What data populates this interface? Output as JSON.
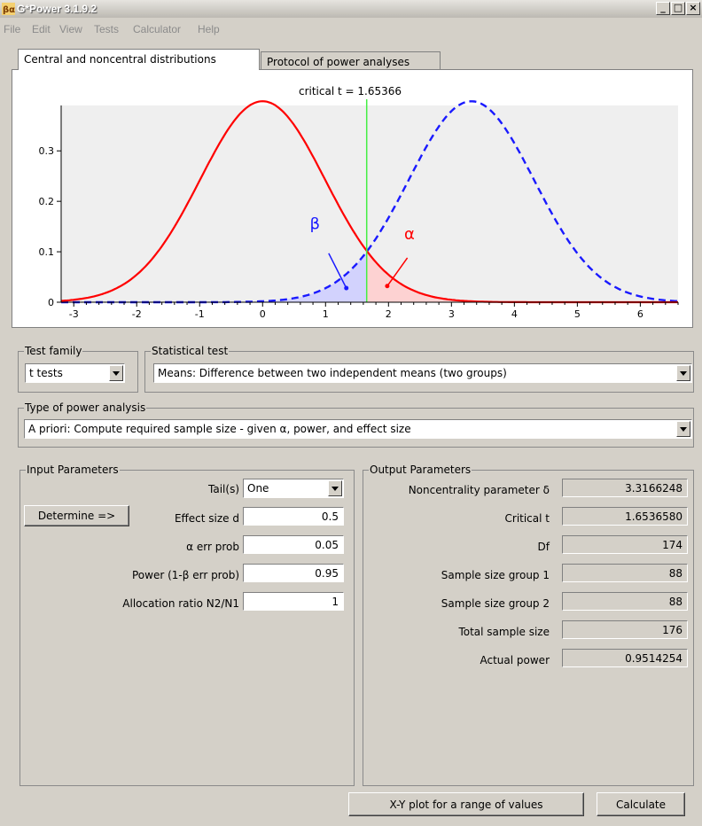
{
  "window": {
    "title": "G*Power 3.1.9.2"
  },
  "menu": [
    "File",
    "Edit",
    "View",
    "Tests",
    "Calculator",
    "Help"
  ],
  "tabs": [
    {
      "label": "Central and noncentral distributions",
      "active": true
    },
    {
      "label": "Protocol of power analyses",
      "active": false
    }
  ],
  "chart_data": {
    "type": "line",
    "title": "critical t = 1.65366",
    "xlim": [
      -3.2,
      6.6
    ],
    "ylim": [
      0,
      0.39
    ],
    "x_ticks": [
      -3,
      -2,
      -1,
      0,
      1,
      2,
      3,
      4,
      5,
      6
    ],
    "y_ticks": [
      0,
      0.1,
      0.2,
      0.3
    ],
    "y_tick_labels": [
      "0",
      "0.1",
      "0.2",
      "0.3"
    ],
    "critical_t": 1.65366,
    "noncentrality": 3.3166248,
    "df": 174,
    "series": [
      {
        "dist": "central t",
        "color": "#ff0000",
        "style": "solid"
      },
      {
        "dist": "noncentral t",
        "color": "#1a1aff",
        "style": "dashed"
      }
    ],
    "critical_line_color": "#44ee44",
    "annotations": [
      {
        "text": "β",
        "color": "#1a1aff"
      },
      {
        "text": "α",
        "color": "#ff0000"
      }
    ],
    "grid": false
  },
  "test_family": {
    "label": "Test family",
    "value": "t tests"
  },
  "statistical_test": {
    "label": "Statistical test",
    "value": "Means: Difference between two independent means (two groups)"
  },
  "power_analysis": {
    "label": "Type of power analysis",
    "value": "A priori: Compute required sample size - given α, power, and effect size"
  },
  "input": {
    "label": "Input Parameters",
    "determine_button": "Determine =>",
    "tails": {
      "label": "Tail(s)",
      "value": "One"
    },
    "params": [
      {
        "label": "Effect size d",
        "value": "0.5"
      },
      {
        "label": "α err prob",
        "value": "0.05"
      },
      {
        "label": "Power (1-β err prob)",
        "value": "0.95"
      },
      {
        "label": "Allocation ratio N2/N1",
        "value": "1"
      }
    ]
  },
  "output": {
    "label": "Output Parameters",
    "params": [
      {
        "label": "Noncentrality parameter δ",
        "value": "3.3166248"
      },
      {
        "label": "Critical t",
        "value": "1.6536580"
      },
      {
        "label": "Df",
        "value": "174"
      },
      {
        "label": "Sample size group 1",
        "value": "88"
      },
      {
        "label": "Sample size group 2",
        "value": "88"
      },
      {
        "label": "Total sample size",
        "value": "176"
      },
      {
        "label": "Actual power",
        "value": "0.9514254"
      }
    ]
  },
  "buttons": {
    "xy_plot": "X-Y plot for a range of values",
    "calculate": "Calculate"
  }
}
